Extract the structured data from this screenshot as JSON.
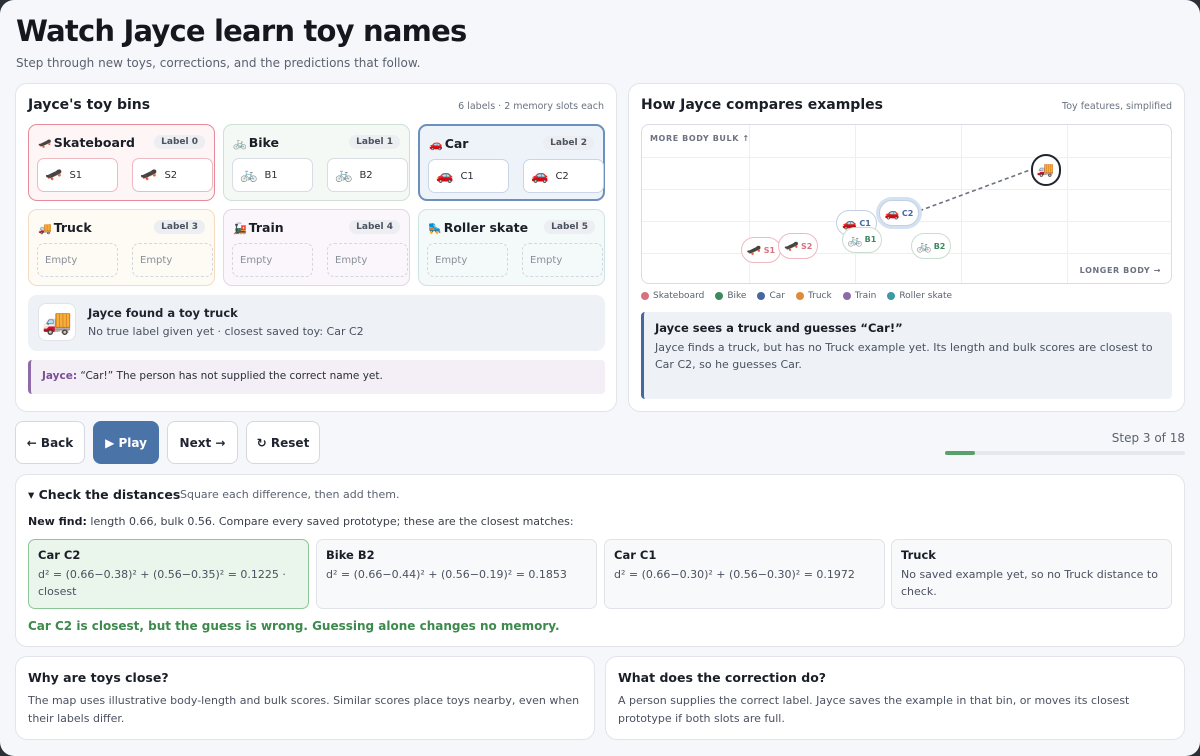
{
  "page": {
    "title": "Watch Jayce learn toy names",
    "subtitle": "Step through new toys, corrections, and the predictions that follow."
  },
  "bins_panel": {
    "title": "Jayce's toy bins",
    "meta": "6 labels · 2 memory slots each"
  },
  "bins": [
    {
      "name": "Skateboard",
      "emoji": "🛹",
      "label": "Label 0",
      "slots": [
        {
          "emoji": "🛹",
          "text": "S1"
        },
        {
          "emoji": "🛹",
          "text": "S2"
        }
      ],
      "color": "#e98a9a",
      "bg": "#fdf5f6"
    },
    {
      "name": "Bike",
      "emoji": "🚲",
      "label": "Label 1",
      "slots": [
        {
          "emoji": "🚲",
          "text": "B1"
        },
        {
          "emoji": "🚲",
          "text": "B2"
        }
      ],
      "color": "#cfe1d4",
      "bg": "#f4f9f5"
    },
    {
      "name": "Car",
      "emoji": "🚗",
      "label": "Label 2",
      "slots": [
        {
          "emoji": "🚗",
          "text": "C1"
        },
        {
          "emoji": "🚗",
          "text": "C2"
        }
      ],
      "color": "#6d8fbd",
      "bg": "#eef3f9"
    },
    {
      "name": "Truck",
      "emoji": "🚚",
      "label": "Label 3",
      "slots": [
        {
          "emoji": "",
          "text": "Empty"
        },
        {
          "emoji": "",
          "text": "Empty"
        }
      ],
      "color": "#f3dcc0",
      "bg": "#fefaf4"
    },
    {
      "name": "Train",
      "emoji": "🚂",
      "label": "Label 4",
      "slots": [
        {
          "emoji": "",
          "text": "Empty"
        },
        {
          "emoji": "",
          "text": "Empty"
        }
      ],
      "color": "#e3d6ea",
      "bg": "#faf6fb"
    },
    {
      "name": "Roller skate",
      "emoji": "🛼",
      "label": "Label 5",
      "slots": [
        {
          "emoji": "",
          "text": "Empty"
        },
        {
          "emoji": "",
          "text": "Empty"
        }
      ],
      "color": "#cfe3e6",
      "bg": "#f4f9fa"
    }
  ],
  "found": {
    "emoji": "🚚",
    "title": "Jayce found a toy truck",
    "detail": "No true label given yet · closest saved toy: Car C2"
  },
  "speech": {
    "speaker": "Jayce:",
    "text": "“Car!” The person has not supplied the correct name yet."
  },
  "compare_panel": {
    "title": "How Jayce compares examples",
    "meta": "Toy features, simplified"
  },
  "chart_data": {
    "type": "scatter",
    "ylabel": "MORE BODY BULK ↑",
    "xlabel": "LONGER BODY →",
    "points": [
      {
        "label": "S1",
        "series": "Skateboard",
        "emoji": "🛹",
        "x": 0.12,
        "y": 0.17
      },
      {
        "label": "S2",
        "series": "Skateboard",
        "emoji": "🛹",
        "x": 0.19,
        "y": 0.19
      },
      {
        "label": "C1",
        "series": "Car",
        "emoji": "🚗",
        "x": 0.3,
        "y": 0.3
      },
      {
        "label": "B1",
        "series": "Bike",
        "emoji": "🚲",
        "x": 0.31,
        "y": 0.22
      },
      {
        "label": "C2",
        "series": "Car",
        "emoji": "🚗",
        "x": 0.38,
        "y": 0.35
      },
      {
        "label": "B2",
        "series": "Bike",
        "emoji": "🚲",
        "x": 0.44,
        "y": 0.19
      },
      {
        "label": "",
        "series": "Truck",
        "emoji": "🚚",
        "x": 0.66,
        "y": 0.56,
        "current": true
      }
    ],
    "link": {
      "from": "C2",
      "to": "current"
    }
  },
  "legend": [
    {
      "name": "Skateboard",
      "color": "#d9707f"
    },
    {
      "name": "Bike",
      "color": "#3e8a5e"
    },
    {
      "name": "Car",
      "color": "#4568a0"
    },
    {
      "name": "Truck",
      "color": "#e08a3c"
    },
    {
      "name": "Train",
      "color": "#8d6aa8"
    },
    {
      "name": "Roller skate",
      "color": "#3b9aa4"
    }
  ],
  "narration": {
    "title": "Jayce sees a truck and guesses “Car!”",
    "text": "Jayce finds a truck, but has no Truck example yet. Its length and bulk scores are closest to Car C2, so he guesses Car."
  },
  "controls": {
    "back": "← Back",
    "play": "▶ Play",
    "next": "Next →",
    "reset": "↻ Reset",
    "step_text": "Step 3 of 18",
    "progress": 0.125
  },
  "distances": {
    "title": "▾ Check the distances",
    "hint": "Square each difference, then add them.",
    "lead_bold": "New find:",
    "lead": " length 0.66, bulk 0.56. Compare every saved prototype; these are the closest matches:",
    "cards": [
      {
        "name": "Car C2",
        "formula": "d² = (0.66−0.38)² + (0.56−0.35)² = 0.1225 · closest",
        "best": true
      },
      {
        "name": "Bike B2",
        "formula": "d² = (0.66−0.44)² + (0.56−0.19)² = 0.1853",
        "best": false
      },
      {
        "name": "Car C1",
        "formula": "d² = (0.66−0.30)² + (0.56−0.30)² = 0.1972",
        "best": false
      },
      {
        "name": "Truck",
        "formula": "No saved example yet, so no Truck distance to check.",
        "best": false
      }
    ],
    "verdict": "Car C2 is closest, but the guess is wrong. Guessing alone changes no memory."
  },
  "info": [
    {
      "title": "Why are toys close?",
      "text": "The map uses illustrative body-length and bulk scores. Similar scores place toys nearby, even when their labels differ."
    },
    {
      "title": "What does the correction do?",
      "text": "A person supplies the correct label. Jayce saves the example in that bin, or moves its closest prototype if both slots are full."
    }
  ]
}
